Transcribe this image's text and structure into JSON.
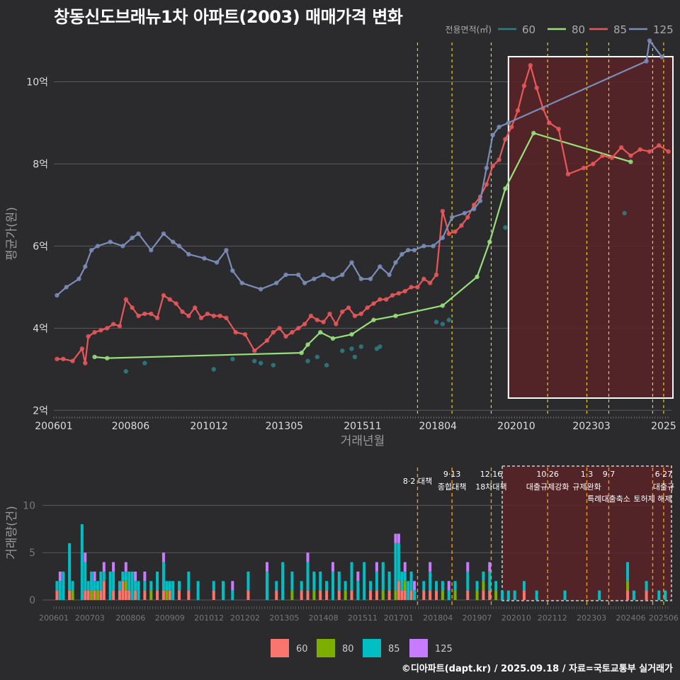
{
  "title": "창동신도브래뉴1차 아파트(2003) 매매가격 변화",
  "footer": "©디아파트(dapt.kr) / 2025.09.18 / 자료=국토교통부 실거래가",
  "colors": {
    "60": "#f8766d",
    "80": "#7cae00",
    "85": "#00bfc4",
    "125": "#c77cff"
  },
  "chart_data": [
    {
      "type": "line",
      "title": "창동신도브래뉴1차 아파트(2003) 매매가격 변화",
      "xlabel": "거래년월",
      "ylabel": "평균가(원)",
      "ylim": [
        1.85,
        11.3
      ],
      "y_ticks": [
        {
          "v": 2,
          "label": "2억"
        },
        {
          "v": 4,
          "label": "4억"
        },
        {
          "v": 6,
          "label": "6억"
        },
        {
          "v": 8,
          "label": "8억"
        },
        {
          "v": 10,
          "label": "10억"
        }
      ],
      "x_ticks": [
        "200601",
        "200806",
        "201012",
        "201305",
        "201511",
        "201804",
        "202010",
        "202303",
        "2025"
      ],
      "legend_title": "전용면적(㎡)",
      "legend_position": "top-right",
      "highlight_range": [
        "2020.5",
        "2025.7"
      ],
      "policy_lines": [
        2017.6,
        2018.7,
        2019.95,
        2021.75,
        2023.0,
        2023.7,
        2025.1,
        2025.45
      ],
      "series": [
        {
          "name": "60",
          "line_color": "#2d7f86",
          "x": [
            2008.3,
            2008.9,
            2011.1,
            2011.7,
            2012.4,
            2012.6,
            2013.0,
            2014.1,
            2014.4,
            2014.7,
            2015.2,
            2015.5,
            2015.6,
            2015.8,
            2016.3,
            2016.4,
            2018.2,
            2018.4,
            2018.6,
            2020.4,
            2024.2
          ],
          "y": [
            2.95,
            3.15,
            3.0,
            3.25,
            3.2,
            3.15,
            3.1,
            3.2,
            3.3,
            3.1,
            3.45,
            3.5,
            3.3,
            3.55,
            3.5,
            3.55,
            4.15,
            4.1,
            4.2,
            6.45,
            6.8
          ],
          "points_only": true
        },
        {
          "name": "80",
          "line_color": "#98e07a",
          "x": [
            2007.3,
            2007.7,
            2013.9,
            2014.1,
            2014.5,
            2014.9,
            2015.5,
            2016.2,
            2016.9,
            2018.4,
            2019.5,
            2019.9,
            2020.4,
            2021.3,
            2024.4
          ],
          "y": [
            3.3,
            3.27,
            3.4,
            3.6,
            3.9,
            3.75,
            3.85,
            4.2,
            4.3,
            4.55,
            5.25,
            6.1,
            7.4,
            8.75,
            8.05
          ]
        },
        {
          "name": "85",
          "line_color": "#e8575a",
          "x": [
            2006.1,
            2006.3,
            2006.6,
            2006.9,
            2007.0,
            2007.1,
            2007.3,
            2007.5,
            2007.7,
            2007.9,
            2008.1,
            2008.3,
            2008.5,
            2008.7,
            2008.9,
            2009.1,
            2009.3,
            2009.5,
            2009.7,
            2009.9,
            2010.1,
            2010.3,
            2010.5,
            2010.7,
            2010.9,
            2011.1,
            2011.3,
            2011.5,
            2011.8,
            2012.1,
            2012.4,
            2012.8,
            2013.0,
            2013.2,
            2013.4,
            2013.6,
            2013.8,
            2014.0,
            2014.2,
            2014.4,
            2014.6,
            2014.8,
            2015.0,
            2015.2,
            2015.4,
            2015.6,
            2015.8,
            2016.0,
            2016.2,
            2016.4,
            2016.6,
            2016.8,
            2017.0,
            2017.2,
            2017.4,
            2017.6,
            2017.8,
            2018.0,
            2018.2,
            2018.4,
            2018.6,
            2018.8,
            2019.0,
            2019.2,
            2019.4,
            2019.6,
            2019.8,
            2020.0,
            2020.2,
            2020.4,
            2020.6,
            2020.8,
            2021.0,
            2021.2,
            2021.4,
            2021.6,
            2021.8,
            2022.1,
            2022.4,
            2022.9,
            2023.2,
            2023.5,
            2023.8,
            2024.1,
            2024.4,
            2024.7,
            2025.0,
            2025.3,
            2025.6
          ],
          "y": [
            3.25,
            3.25,
            3.2,
            3.5,
            3.15,
            3.8,
            3.9,
            3.95,
            4.0,
            4.1,
            4.05,
            4.7,
            4.5,
            4.3,
            4.35,
            4.35,
            4.25,
            4.8,
            4.7,
            4.6,
            4.4,
            4.3,
            4.5,
            4.25,
            4.35,
            4.3,
            4.3,
            4.25,
            3.9,
            3.85,
            3.45,
            3.7,
            3.9,
            4.0,
            3.8,
            3.9,
            4.0,
            4.1,
            4.3,
            4.2,
            4.15,
            4.35,
            4.1,
            4.4,
            4.5,
            4.3,
            4.35,
            4.5,
            4.6,
            4.7,
            4.7,
            4.8,
            4.85,
            4.9,
            5.0,
            5.0,
            5.2,
            5.1,
            5.3,
            6.85,
            6.3,
            6.35,
            6.5,
            6.7,
            7.0,
            7.2,
            7.5,
            7.95,
            8.1,
            8.6,
            8.9,
            9.3,
            9.9,
            10.4,
            9.85,
            9.35,
            9.0,
            8.85,
            7.75,
            7.9,
            8.0,
            8.2,
            8.15,
            8.4,
            8.2,
            8.35,
            8.3,
            8.45,
            8.3
          ]
        },
        {
          "name": "125",
          "line_color": "#7b8db8",
          "x": [
            2006.1,
            2006.4,
            2006.8,
            2007.0,
            2007.2,
            2007.4,
            2007.8,
            2008.2,
            2008.5,
            2008.7,
            2009.1,
            2009.5,
            2009.8,
            2010.0,
            2010.3,
            2010.8,
            2011.2,
            2011.5,
            2011.7,
            2012.0,
            2012.6,
            2013.1,
            2013.4,
            2013.8,
            2014.0,
            2014.3,
            2014.6,
            2014.9,
            2015.2,
            2015.5,
            2015.8,
            2016.1,
            2016.4,
            2016.7,
            2016.9,
            2017.1,
            2017.3,
            2017.5,
            2017.8,
            2018.1,
            2018.4,
            2018.7,
            2019.1,
            2019.4,
            2019.6,
            2019.8,
            2020.0,
            2020.2,
            2020.5,
            2024.9,
            2025.0,
            2025.4
          ],
          "y": [
            4.8,
            5.0,
            5.2,
            5.5,
            5.9,
            6.0,
            6.1,
            6.0,
            6.2,
            6.3,
            5.9,
            6.3,
            6.1,
            6.0,
            5.8,
            5.7,
            5.6,
            5.9,
            5.4,
            5.1,
            4.95,
            5.1,
            5.3,
            5.3,
            5.1,
            5.2,
            5.3,
            5.2,
            5.3,
            5.6,
            5.2,
            5.2,
            5.5,
            5.3,
            5.6,
            5.8,
            5.9,
            5.9,
            6.0,
            6.0,
            6.2,
            6.7,
            6.8,
            6.9,
            7.1,
            7.9,
            8.7,
            8.9,
            9.0,
            10.5,
            11.0,
            10.6
          ]
        }
      ]
    },
    {
      "type": "bar",
      "stacked": true,
      "ylabel": "거래량(건)",
      "ylim": [
        0,
        14
      ],
      "y_ticks": [
        0,
        5,
        10
      ],
      "x_ticks": [
        "200601",
        "200703",
        "200806",
        "200909",
        "201012",
        "201202",
        "201305",
        "201408",
        "201511",
        "201701",
        "201804",
        "201907",
        "202010",
        "202112",
        "202303",
        "202406",
        "202506"
      ],
      "legend": [
        "60",
        "80",
        "85",
        "125"
      ],
      "legend_position": "bottom",
      "highlight_range": [
        "2020.5",
        "2025.7"
      ],
      "policy_annotations": [
        {
          "x": 2017.6,
          "date": "",
          "label": "8·2 대책"
        },
        {
          "x": 2018.7,
          "date": "9·13",
          "label": "종합대책"
        },
        {
          "x": 2019.95,
          "date": "12·16",
          "label": "18차대책"
        },
        {
          "x": 2021.75,
          "date": "10·26",
          "label": "대출규제강화"
        },
        {
          "x": 2023.0,
          "date": "1·3",
          "label": "규제완화"
        },
        {
          "x": 2023.7,
          "date": "9·7",
          "label": "특례대출축소"
        },
        {
          "x": 2025.1,
          "date": "",
          "label": "토허제 해제"
        },
        {
          "x": 2025.45,
          "date": "6·27",
          "label": "대출규"
        }
      ],
      "bars": {
        "x": [
          2006.1,
          2006.2,
          2006.3,
          2006.5,
          2006.6,
          2006.9,
          2007.0,
          2007.1,
          2007.2,
          2007.3,
          2007.4,
          2007.5,
          2007.6,
          2007.8,
          2007.9,
          2008.1,
          2008.2,
          2008.3,
          2008.4,
          2008.5,
          2008.6,
          2008.7,
          2008.9,
          2009.1,
          2009.3,
          2009.5,
          2009.6,
          2009.7,
          2009.8,
          2010.0,
          2010.3,
          2010.6,
          2011.1,
          2011.4,
          2011.7,
          2012.2,
          2012.8,
          2013.1,
          2013.3,
          2013.6,
          2013.9,
          2014.1,
          2014.3,
          2014.5,
          2014.7,
          2014.9,
          2015.1,
          2015.3,
          2015.5,
          2015.7,
          2015.9,
          2016.1,
          2016.3,
          2016.5,
          2016.7,
          2016.9,
          2017.0,
          2017.1,
          2017.2,
          2017.3,
          2017.4,
          2017.5,
          2017.8,
          2018.0,
          2018.2,
          2018.4,
          2018.6,
          2018.8,
          2019.2,
          2019.5,
          2019.7,
          2019.9,
          2020.1,
          2020.3,
          2020.5,
          2020.7,
          2021.0,
          2021.4,
          2022.3,
          2023.4,
          2024.3,
          2024.5,
          2024.9,
          2025.3,
          2025.5
        ],
        "60": [
          1,
          0,
          0,
          1,
          0,
          0,
          1,
          1,
          0,
          1,
          0,
          1,
          2,
          0,
          1,
          1,
          2,
          1,
          1,
          0,
          1,
          0,
          1,
          0,
          1,
          1,
          0,
          1,
          0,
          1,
          1,
          0,
          1,
          0,
          0,
          1,
          0,
          1,
          0,
          0,
          1,
          1,
          0,
          1,
          1,
          0,
          1,
          0,
          1,
          0,
          0,
          1,
          1,
          0,
          1,
          0,
          2,
          1,
          1,
          0,
          1,
          0,
          1,
          1,
          1,
          0,
          0,
          0,
          1,
          0,
          1,
          1,
          0,
          0,
          0,
          0,
          1,
          0,
          0,
          0,
          1,
          0,
          1,
          0,
          0
        ],
        "80": [
          0,
          0,
          0,
          0,
          1,
          0,
          0,
          0,
          1,
          0,
          1,
          0,
          0,
          0,
          0,
          0,
          0,
          1,
          0,
          0,
          0,
          0,
          0,
          1,
          0,
          0,
          1,
          0,
          0,
          0,
          0,
          0,
          0,
          0,
          0,
          0,
          0,
          0,
          0,
          1,
          0,
          0,
          1,
          0,
          0,
          0,
          0,
          1,
          0,
          0,
          0,
          0,
          0,
          1,
          0,
          1,
          0,
          0,
          1,
          0,
          0,
          0,
          0,
          0,
          0,
          1,
          0,
          1,
          0,
          1,
          1,
          0,
          1,
          0,
          0,
          0,
          0,
          0,
          0,
          0,
          1,
          0,
          0,
          0,
          0
        ],
        "85": [
          1,
          2,
          3,
          5,
          1,
          8,
          3,
          1,
          2,
          1,
          1,
          2,
          1,
          3,
          2,
          1,
          1,
          1,
          2,
          3,
          1,
          2,
          1,
          1,
          2,
          3,
          1,
          1,
          2,
          1,
          2,
          2,
          1,
          2,
          1,
          2,
          3,
          1,
          4,
          2,
          1,
          3,
          2,
          2,
          1,
          3,
          2,
          1,
          3,
          2,
          4,
          1,
          2,
          3,
          2,
          5,
          4,
          2,
          1,
          2,
          2,
          1,
          1,
          2,
          1,
          1,
          1,
          1,
          2,
          1,
          1,
          2,
          1,
          1,
          1,
          1,
          1,
          1,
          1,
          1,
          2,
          1,
          1,
          1,
          1
        ],
        "125": [
          0,
          1,
          0,
          0,
          0,
          0,
          1,
          0,
          0,
          1,
          0,
          0,
          1,
          0,
          1,
          0,
          0,
          1,
          0,
          0,
          1,
          0,
          1,
          0,
          0,
          1,
          0,
          0,
          0,
          0,
          0,
          0,
          0,
          0,
          1,
          0,
          1,
          0,
          0,
          0,
          0,
          1,
          0,
          0,
          0,
          1,
          0,
          0,
          0,
          1,
          0,
          0,
          1,
          0,
          0,
          1,
          1,
          0,
          1,
          0,
          0,
          1,
          0,
          1,
          0,
          0,
          1,
          0,
          1,
          0,
          0,
          1,
          0,
          0,
          0,
          0,
          0,
          0,
          0,
          0,
          0,
          0,
          0,
          0,
          0
        ]
      }
    }
  ]
}
